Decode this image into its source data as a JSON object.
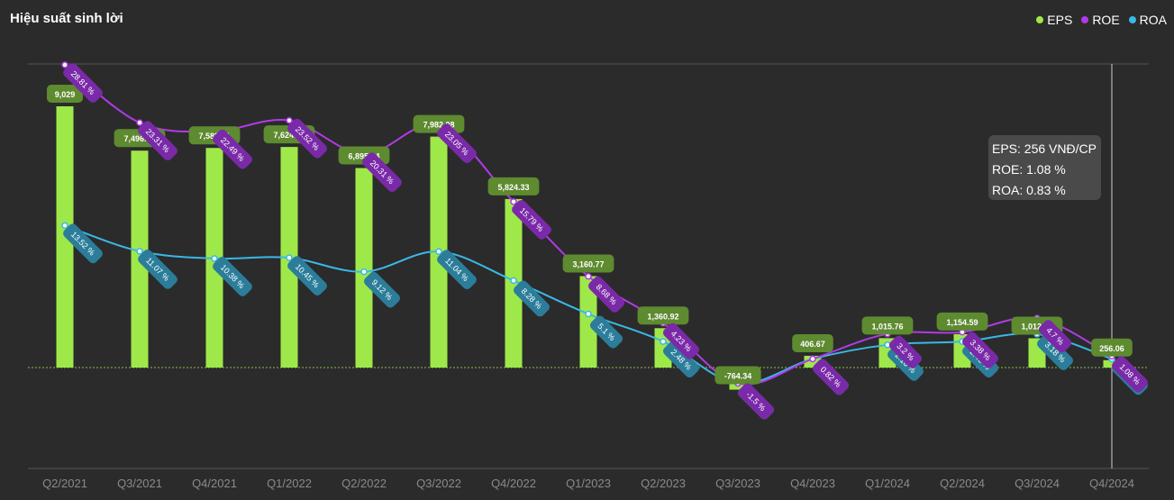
{
  "title": "Hiệu suất sinh lời",
  "legend": [
    {
      "name": "EPS",
      "color": "#9fe84a"
    },
    {
      "name": "ROE",
      "color": "#b13ae8"
    },
    {
      "name": "ROA",
      "color": "#3ab8e6"
    }
  ],
  "tooltip": {
    "eps": "EPS: 256 VNĐ/CP",
    "roe": "ROE: 1.08 %",
    "roa": "ROA: 0.83 %"
  },
  "chart_data": {
    "type": "bar",
    "categories": [
      "Q2/2021",
      "Q3/2021",
      "Q4/2021",
      "Q1/2022",
      "Q2/2022",
      "Q3/2022",
      "Q4/2022",
      "Q1/2023",
      "Q2/2023",
      "Q3/2023",
      "Q4/2023",
      "Q1/2024",
      "Q2/2024",
      "Q3/2024",
      "Q4/2024"
    ],
    "series": [
      {
        "name": "EPS",
        "kind": "bar",
        "color": "#9fe84a",
        "label_bg": "#5e8a30",
        "values": [
          9029,
          7496.63,
          7589.81,
          7624.45,
          6895.04,
          7982.08,
          5824.33,
          3160.77,
          1360.92,
          -764.34,
          406.67,
          1015.76,
          1154.59,
          1012.03,
          256.06
        ],
        "labels": [
          "9,029",
          "7,496.63",
          "7,589.81",
          "7,624.45",
          "6,895.04",
          "7,982.08",
          "5,824.33",
          "3,160.77",
          "1,360.92",
          "-764.34",
          "406.67",
          "1,015.76",
          "1,154.59",
          "1,012.03",
          "256.06"
        ]
      },
      {
        "name": "ROE",
        "kind": "line",
        "color": "#b13ae8",
        "label_bg": "#7a2aa8",
        "values": [
          28.81,
          23.31,
          22.49,
          23.52,
          20.31,
          23.05,
          15.79,
          8.68,
          4.23,
          -1.5,
          0.82,
          3.2,
          3.38,
          4.7,
          1.08
        ],
        "labels": [
          "28.81 %",
          "23.31 %",
          "22.49 %",
          "23.52 %",
          "20.31 %",
          "23.05 %",
          "15.79 %",
          "8.68 %",
          "4.23 %",
          "-1.5 %",
          "0.82 %",
          "3.2 %",
          "3.38 %",
          "4.7 %",
          "1.08 %"
        ]
      },
      {
        "name": "ROA",
        "kind": "line",
        "color": "#3ab8e6",
        "label_bg": "#2b7d9a",
        "values": [
          13.52,
          11.07,
          10.38,
          10.45,
          9.12,
          11.04,
          8.28,
          5.1,
          2.48,
          -1.5,
          0.82,
          2.16,
          2.48,
          3.18,
          0.83
        ],
        "labels": [
          "13.52 %",
          "11.07 %",
          "10.38 %",
          "10.45 %",
          "9.12 %",
          "11.04 %",
          "8.28 %",
          "5.1 %",
          "2.48 %",
          "-1.5 %",
          "0.82 %",
          "2.16 %",
          "2.48 %",
          "3.18 %",
          "0.83 %"
        ]
      }
    ],
    "eps_range": [
      -2000,
      11000
    ],
    "ratio_range": [
      -5,
      30
    ],
    "grid": true,
    "legend_position": "top-right"
  }
}
